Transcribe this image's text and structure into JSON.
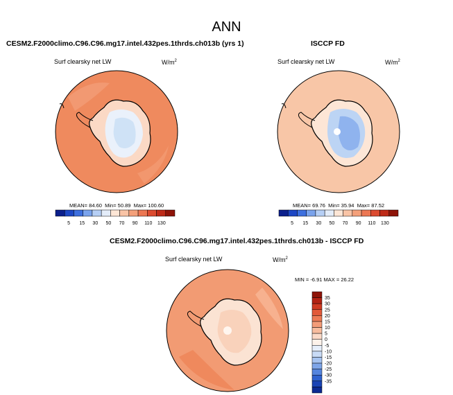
{
  "title": "ANN",
  "panels": [
    {
      "id": "model",
      "subtitle": "CESM2.F2000climo.C96.C96.mg17.intel.432pes.1thrds.ch013b (yrs 1)",
      "variable_label": "Surf clearsky net LW",
      "units_base": "W/m",
      "units_exp": "2",
      "stats": {
        "mean_label": "MEAN=",
        "mean": "84.60",
        "min_label": "Min=",
        "min": "50.89",
        "max_label": "Max=",
        "max": "100.60"
      },
      "ocean_color": "#ef8a5e",
      "land_colors": [
        "#fbd9c5",
        "#eaf1fb",
        "#cfe2f6"
      ]
    },
    {
      "id": "obs",
      "subtitle": "ISCCP FD",
      "variable_label": "Surf clearsky net LW",
      "units_base": "W/m",
      "units_exp": "2",
      "stats": {
        "mean_label": "MEAN=",
        "mean": "69.76",
        "min_label": "Min=",
        "min": "35.94",
        "max_label": "Max=",
        "max": "87.52"
      },
      "ocean_color": "#f8c6a7",
      "land_colors": [
        "#fde6d6",
        "#bcd4f4",
        "#8fb3ee"
      ]
    },
    {
      "id": "diff",
      "subtitle": "CESM2.F2000climo.C96.C96.mg17.intel.432pes.1thrds.ch013b - ISCCP FD",
      "variable_label": "Surf clearsky net LW",
      "units_base": "W/m",
      "units_exp": "2",
      "stats": {
        "min_label": "MIN =",
        "min": "-6.91",
        "max_label": "MAX =",
        "max": "26.22"
      },
      "ocean_color": "#f29b73",
      "land_colors": [
        "#fbe3d3",
        "#f9d2bb",
        "#fff6ef"
      ]
    }
  ],
  "colorbar_abs": {
    "ticks": [
      "5",
      "15",
      "30",
      "50",
      "70",
      "90",
      "110",
      "130"
    ],
    "colors": [
      "#0b1f8c",
      "#1d47c4",
      "#3d6fde",
      "#7aa3ec",
      "#b6cff5",
      "#e3ecf9",
      "#fde6d6",
      "#f9c4a6",
      "#f4a07a",
      "#ec7753",
      "#dc4b30",
      "#be2a18",
      "#8e1408"
    ]
  },
  "colorbar_diff": {
    "ticks": [
      "35",
      "30",
      "25",
      "20",
      "15",
      "10",
      "5",
      "0",
      "-5",
      "-10",
      "-15",
      "-20",
      "-25",
      "-30",
      "-35"
    ],
    "colors": [
      "#8e1408",
      "#b22213",
      "#cf3a22",
      "#e25a3a",
      "#ed7b56",
      "#f39c78",
      "#f7bc9e",
      "#fbdac8",
      "#fdf2ea",
      "#e6eefa",
      "#c9dbf6",
      "#a6c3f0",
      "#7ea5e8",
      "#5585de",
      "#2f62cf",
      "#1a44b5",
      "#0c2a92"
    ]
  }
}
